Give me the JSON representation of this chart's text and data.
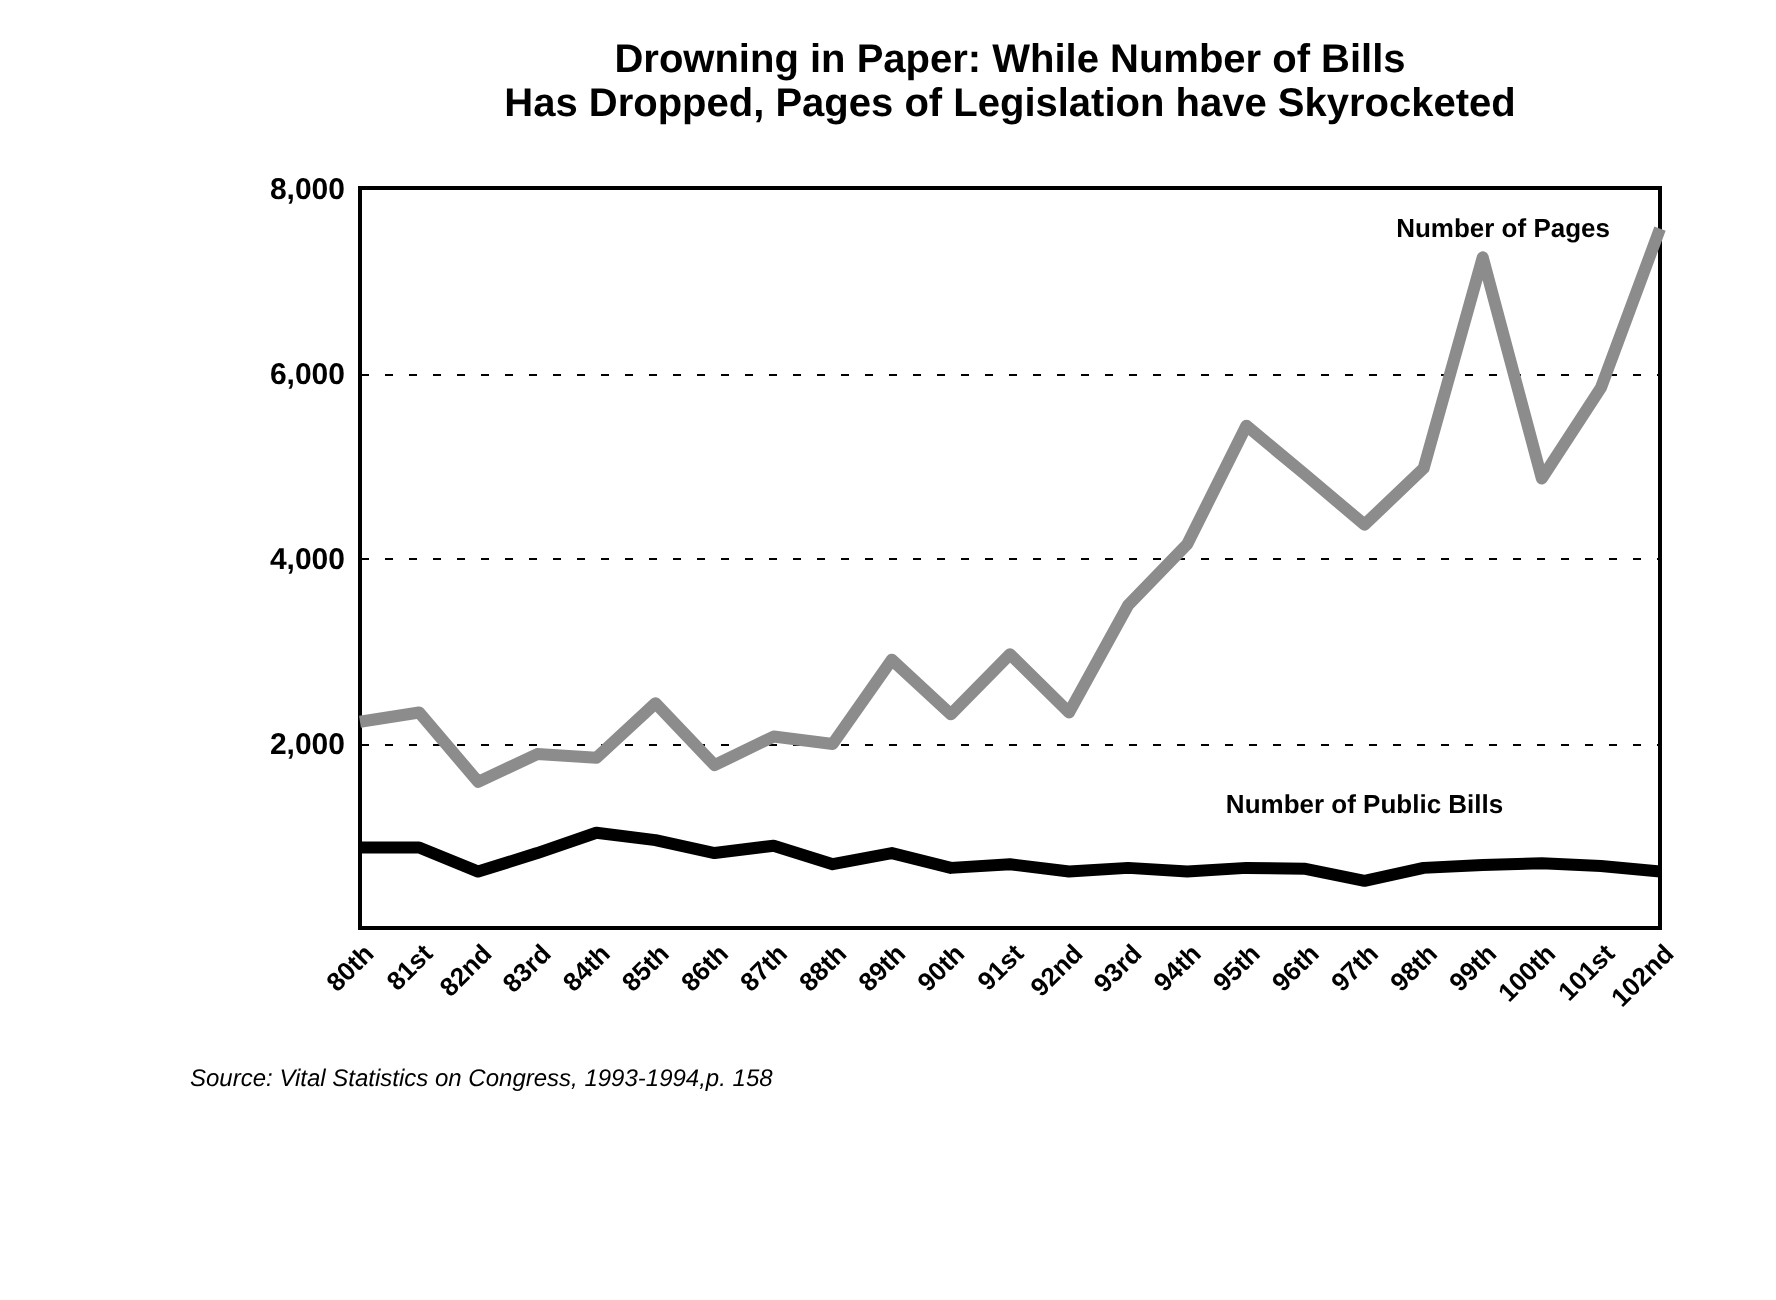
{
  "chart_data": {
    "type": "line",
    "title": "Drowning in Paper: While Number of Bills\nHas Dropped, Pages of Legislation have Skyrocketed",
    "categories": [
      "80th",
      "81st",
      "82nd",
      "83rd",
      "84th",
      "85th",
      "86th",
      "87th",
      "88th",
      "89th",
      "90th",
      "91st",
      "92nd",
      "93rd",
      "94th",
      "95th",
      "96th",
      "97th",
      "98th",
      "99th",
      "100th",
      "101st",
      "102nd"
    ],
    "series": [
      {
        "name": "Number of Pages",
        "color": "#8c8c8c",
        "values": [
          2230,
          2330,
          1580,
          1880,
          1840,
          2430,
          1760,
          2070,
          1990,
          2900,
          2310,
          2960,
          2330,
          3490,
          4150,
          5430,
          4900,
          4360,
          4970,
          7250,
          4860,
          5840,
          7560
        ]
      },
      {
        "name": "Number of Public Bills",
        "color": "#000000",
        "values": [
          870,
          870,
          610,
          810,
          1030,
          950,
          810,
          890,
          690,
          810,
          650,
          690,
          610,
          650,
          610,
          650,
          640,
          510,
          650,
          680,
          700,
          670,
          610
        ]
      }
    ],
    "ylim": [
      0,
      8000
    ],
    "yticks": [
      {
        "value": 0,
        "label": null
      },
      {
        "value": 2000,
        "label": "2,000"
      },
      {
        "value": 4000,
        "label": "4,000"
      },
      {
        "value": 6000,
        "label": "6,000"
      },
      {
        "value": 8000,
        "label": "8,000"
      }
    ],
    "grid": "y",
    "line_style": "solid",
    "marker": "none",
    "annotations": [
      "Source: Vital Statistics on Congress, 1993-1994,p. 158"
    ]
  }
}
